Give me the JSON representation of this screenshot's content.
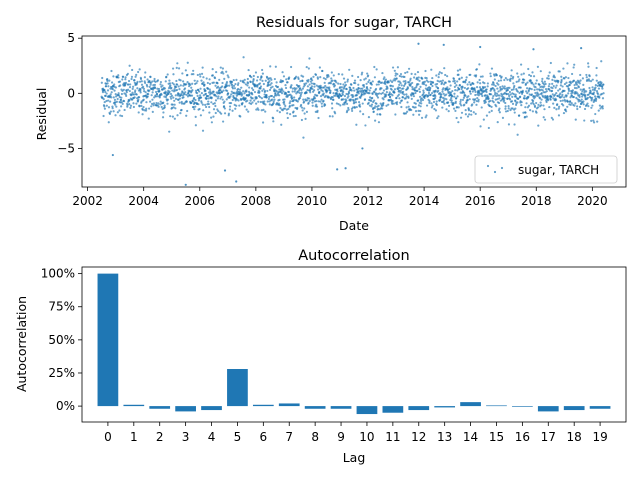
{
  "colors": {
    "series": "#1f77b4"
  },
  "chart_data": [
    {
      "type": "scatter",
      "title": "Residuals for sugar, TARCH",
      "xlabel": "Date",
      "ylabel": "Residual",
      "xlim": [
        2001.8,
        2021.2
      ],
      "ylim": [
        -8.5,
        5.2
      ],
      "xticks": [
        2002,
        2004,
        2006,
        2008,
        2010,
        2012,
        2014,
        2016,
        2018,
        2020
      ],
      "xticklabels": [
        "2002",
        "2004",
        "2006",
        "2008",
        "2010",
        "2012",
        "2014",
        "2016",
        "2018",
        "2020"
      ],
      "yticks": [
        -5,
        0,
        5
      ],
      "yticklabels": [
        "−5",
        "0",
        "5"
      ],
      "legend": {
        "label": "sugar, TARCH",
        "location": "lower-right"
      },
      "data_range": {
        "x_start": 2002.5,
        "x_end": 2020.4
      },
      "series": [
        {
          "name": "sugar, TARCH",
          "description_points": [
            {
              "x": 2002.9,
              "y": -5.6
            },
            {
              "x": 2005.5,
              "y": -8.3
            },
            {
              "x": 2006.9,
              "y": -7.0
            },
            {
              "x": 2007.3,
              "y": -8.0
            },
            {
              "x": 2010.9,
              "y": -6.9
            },
            {
              "x": 2011.2,
              "y": -6.8
            },
            {
              "x": 2011.8,
              "y": -5.0
            },
            {
              "x": 2013.8,
              "y": 4.5
            },
            {
              "x": 2014.7,
              "y": 4.4
            },
            {
              "x": 2016.0,
              "y": 4.2
            },
            {
              "x": 2019.6,
              "y": 4.1
            },
            {
              "x": 2017.9,
              "y": 4.0
            }
          ]
        }
      ]
    },
    {
      "type": "bar",
      "title": "Autocorrelation",
      "xlabel": "Lag",
      "ylabel": "Autocorrelation",
      "ylim": [
        -0.12,
        1.05
      ],
      "yticks": [
        0,
        0.25,
        0.5,
        0.75,
        1.0
      ],
      "yticklabels": [
        "0%",
        "25%",
        "50%",
        "75%",
        "100%"
      ],
      "categories": [
        "0",
        "1",
        "2",
        "3",
        "4",
        "5",
        "6",
        "7",
        "8",
        "9",
        "10",
        "11",
        "12",
        "13",
        "14",
        "15",
        "16",
        "17",
        "18",
        "19"
      ],
      "values": [
        1.0,
        0.01,
        -0.02,
        -0.04,
        -0.03,
        0.28,
        0.01,
        0.02,
        -0.02,
        -0.02,
        -0.06,
        -0.05,
        -0.03,
        -0.01,
        0.03,
        0.005,
        -0.005,
        -0.04,
        -0.03,
        -0.02
      ]
    }
  ]
}
